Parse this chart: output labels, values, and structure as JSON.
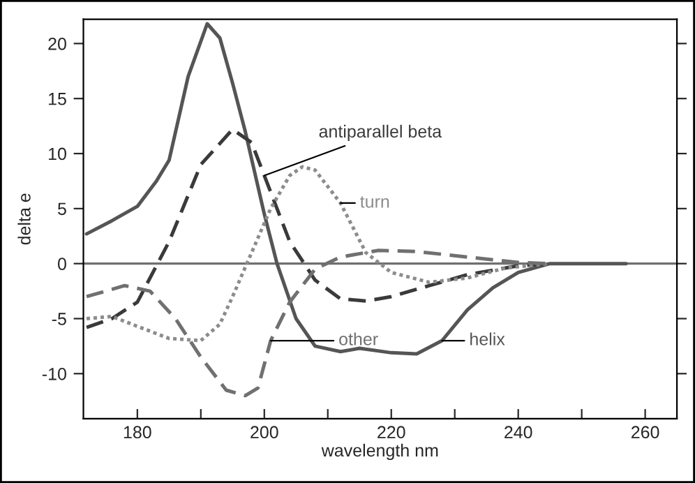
{
  "chart_data": {
    "type": "line",
    "xlabel": "wavelength nm",
    "ylabel": "delta e",
    "xlim": [
      171.5,
      265
    ],
    "ylim": [
      -14.1,
      22.2
    ],
    "xticks": [
      180,
      {
        "value": 190,
        "label": null
      },
      200,
      {
        "value": 210,
        "label": null
      },
      220,
      {
        "value": 230,
        "label": null
      },
      240,
      {
        "value": 250,
        "label": null
      },
      260
    ],
    "yticks": [
      -10,
      -5,
      0,
      5,
      10,
      15,
      20
    ],
    "grid": false,
    "legend": false,
    "marker": "none",
    "ref_lines": [
      {
        "axis": "y",
        "value": 0,
        "color": "#707070",
        "line_style": "solid"
      }
    ],
    "series": [
      {
        "name": "helix",
        "color": "#555555",
        "line_style": "solid",
        "x": [
          172,
          176,
          180,
          183,
          185,
          188,
          191,
          193,
          195,
          197,
          200,
          202,
          205,
          208,
          212,
          215,
          220,
          224,
          228,
          232,
          236,
          240,
          245,
          250,
          257
        ],
        "values": [
          2.7,
          3.9,
          5.2,
          7.5,
          9.4,
          17,
          21.8,
          20.5,
          16.4,
          12,
          4.5,
          0,
          -5,
          -7.5,
          -8,
          -7.7,
          -8.1,
          -8.2,
          -7,
          -4.2,
          -2.2,
          -0.8,
          0,
          0,
          0
        ]
      },
      {
        "name": "antiparallel beta",
        "color": "#3a3a3a",
        "line_style": "dashed",
        "x": [
          172,
          176,
          180,
          185,
          190,
          195,
          198,
          200,
          204,
          208,
          212,
          216,
          220,
          226,
          232,
          240,
          245
        ],
        "values": [
          -5.8,
          -5,
          -3.5,
          2,
          9,
          12.2,
          11,
          8,
          2,
          -1.5,
          -3.2,
          -3.4,
          -3,
          -2,
          -1,
          -0.2,
          0
        ]
      },
      {
        "name": "turn",
        "color": "#8c8c8c",
        "line_style": "dotted",
        "x": [
          172,
          176,
          180,
          185,
          190,
          193,
          195,
          198,
          201,
          204,
          206,
          208,
          212,
          216,
          220,
          226,
          232,
          238,
          245
        ],
        "values": [
          -5,
          -4.8,
          -5.7,
          -6.8,
          -7,
          -5.5,
          -3,
          1,
          5,
          8,
          8.8,
          8.5,
          5.5,
          1,
          -0.8,
          -1.7,
          -1.3,
          -0.4,
          0
        ]
      },
      {
        "name": "other",
        "color": "#707070",
        "line_style": "dashed",
        "x": [
          172,
          178,
          182,
          186,
          190,
          194,
          197,
          199,
          201,
          204,
          208,
          212,
          218,
          224,
          232,
          240,
          245
        ],
        "values": [
          -3,
          -2,
          -2.5,
          -5,
          -8.5,
          -11.5,
          -12,
          -11.3,
          -7,
          -3.5,
          -0.5,
          0.6,
          1.2,
          1.1,
          0.6,
          0.1,
          0
        ]
      }
    ]
  }
}
